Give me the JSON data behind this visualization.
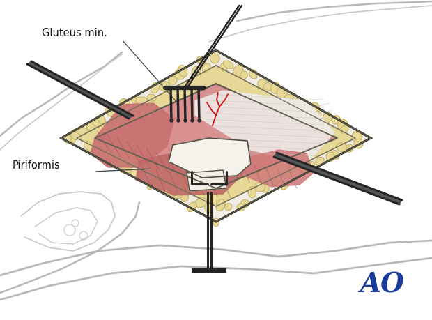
{
  "bg_color": "#ffffff",
  "fat_color": "#ddd090",
  "fat_fill": "#e8d898",
  "fat_border": "#b8a850",
  "muscle_red": "#c86060",
  "muscle_pink": "#e8a090",
  "muscle_light": "#f0c0b0",
  "white_area": "#f8f6f4",
  "bone_white": "#f5f3ee",
  "retractor_dark": "#252525",
  "retractor_mid": "#404040",
  "skin_gray": "#d0ccc0",
  "label_gluteus": "Gluteus min.",
  "label_piriformis": "Piriformis",
  "ao_color": "#1a3a9c",
  "gray_body": "#b8b8b8",
  "gray_body2": "#c8c8c8",
  "line_dark": "#505040",
  "line_mid": "#707060"
}
